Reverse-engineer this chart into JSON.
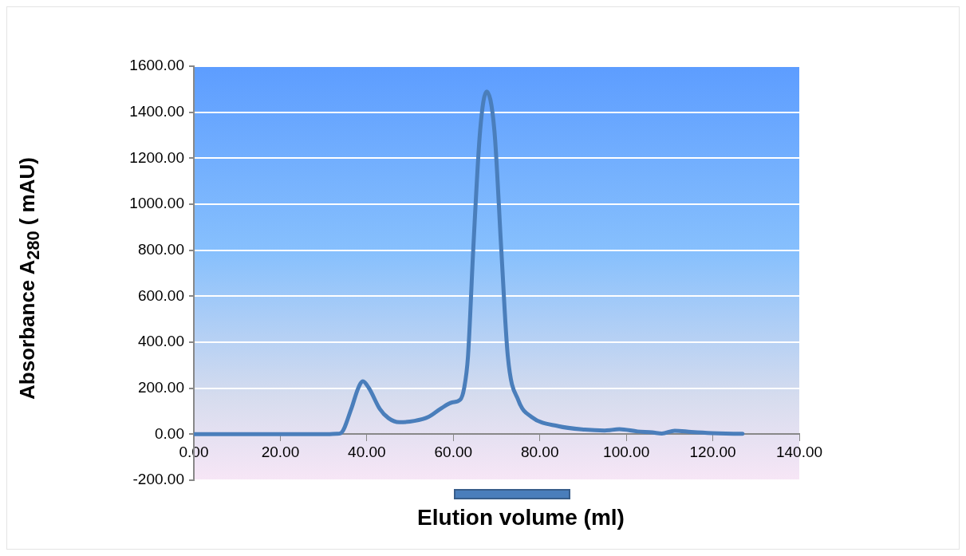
{
  "chart_data": {
    "type": "line",
    "xlabel": "Elution volume (ml)",
    "ylabel": "Absorbance    A$_{280}$ ( mAU)",
    "series": [
      {
        "color": "#4a7ebb",
        "x": [
          0,
          10,
          20,
          30,
          33,
          34,
          36.4,
          38,
          39.1,
          40.5,
          43,
          45,
          47.5,
          51,
          54.2,
          57,
          59.7,
          61.6,
          62.5,
          63.4,
          64.6,
          66.2,
          67.7,
          69.5,
          71.1,
          72.6,
          75.1,
          78.1,
          84.3,
          90.4,
          95,
          98.4,
          102.6,
          106,
          108.2,
          111.2,
          115,
          119.8,
          123,
          126.9
        ],
        "values": [
          0,
          0,
          0,
          0,
          2,
          5,
          110,
          200,
          230,
          200,
          110,
          70,
          52,
          58,
          75,
          110,
          138,
          150,
          200,
          340,
          800,
          1320,
          1490,
          1320,
          800,
          340,
          145,
          75,
          35,
          20,
          16,
          22,
          12,
          8,
          3,
          15,
          10,
          5,
          3,
          2
        ]
      }
    ],
    "xlim": [
      0,
      140
    ],
    "ylim": [
      -200,
      1600
    ],
    "xticks": [
      {
        "value": 0,
        "label": "0.00"
      },
      {
        "value": 20,
        "label": "20.00"
      },
      {
        "value": 40,
        "label": "40.00"
      },
      {
        "value": 60,
        "label": "60.00"
      },
      {
        "value": 80,
        "label": "80.00"
      },
      {
        "value": 100,
        "label": "100.00"
      },
      {
        "value": 120,
        "label": "120.00"
      },
      {
        "value": 140,
        "label": "140.00"
      }
    ],
    "yticks": [
      {
        "value": -200,
        "label": "-200.00"
      },
      {
        "value": 0,
        "label": "0.00"
      },
      {
        "value": 200,
        "label": "200.00"
      },
      {
        "value": 400,
        "label": "400.00"
      },
      {
        "value": 600,
        "label": "600.00"
      },
      {
        "value": 800,
        "label": "800.00"
      },
      {
        "value": 1000,
        "label": "1000.00"
      },
      {
        "value": 1200,
        "label": "1200.00"
      },
      {
        "value": 1400,
        "label": "1400.00"
      },
      {
        "value": 1600,
        "label": "1600.00"
      }
    ],
    "grid": "y",
    "marker": "none",
    "line_style": "solid",
    "legend": false
  }
}
